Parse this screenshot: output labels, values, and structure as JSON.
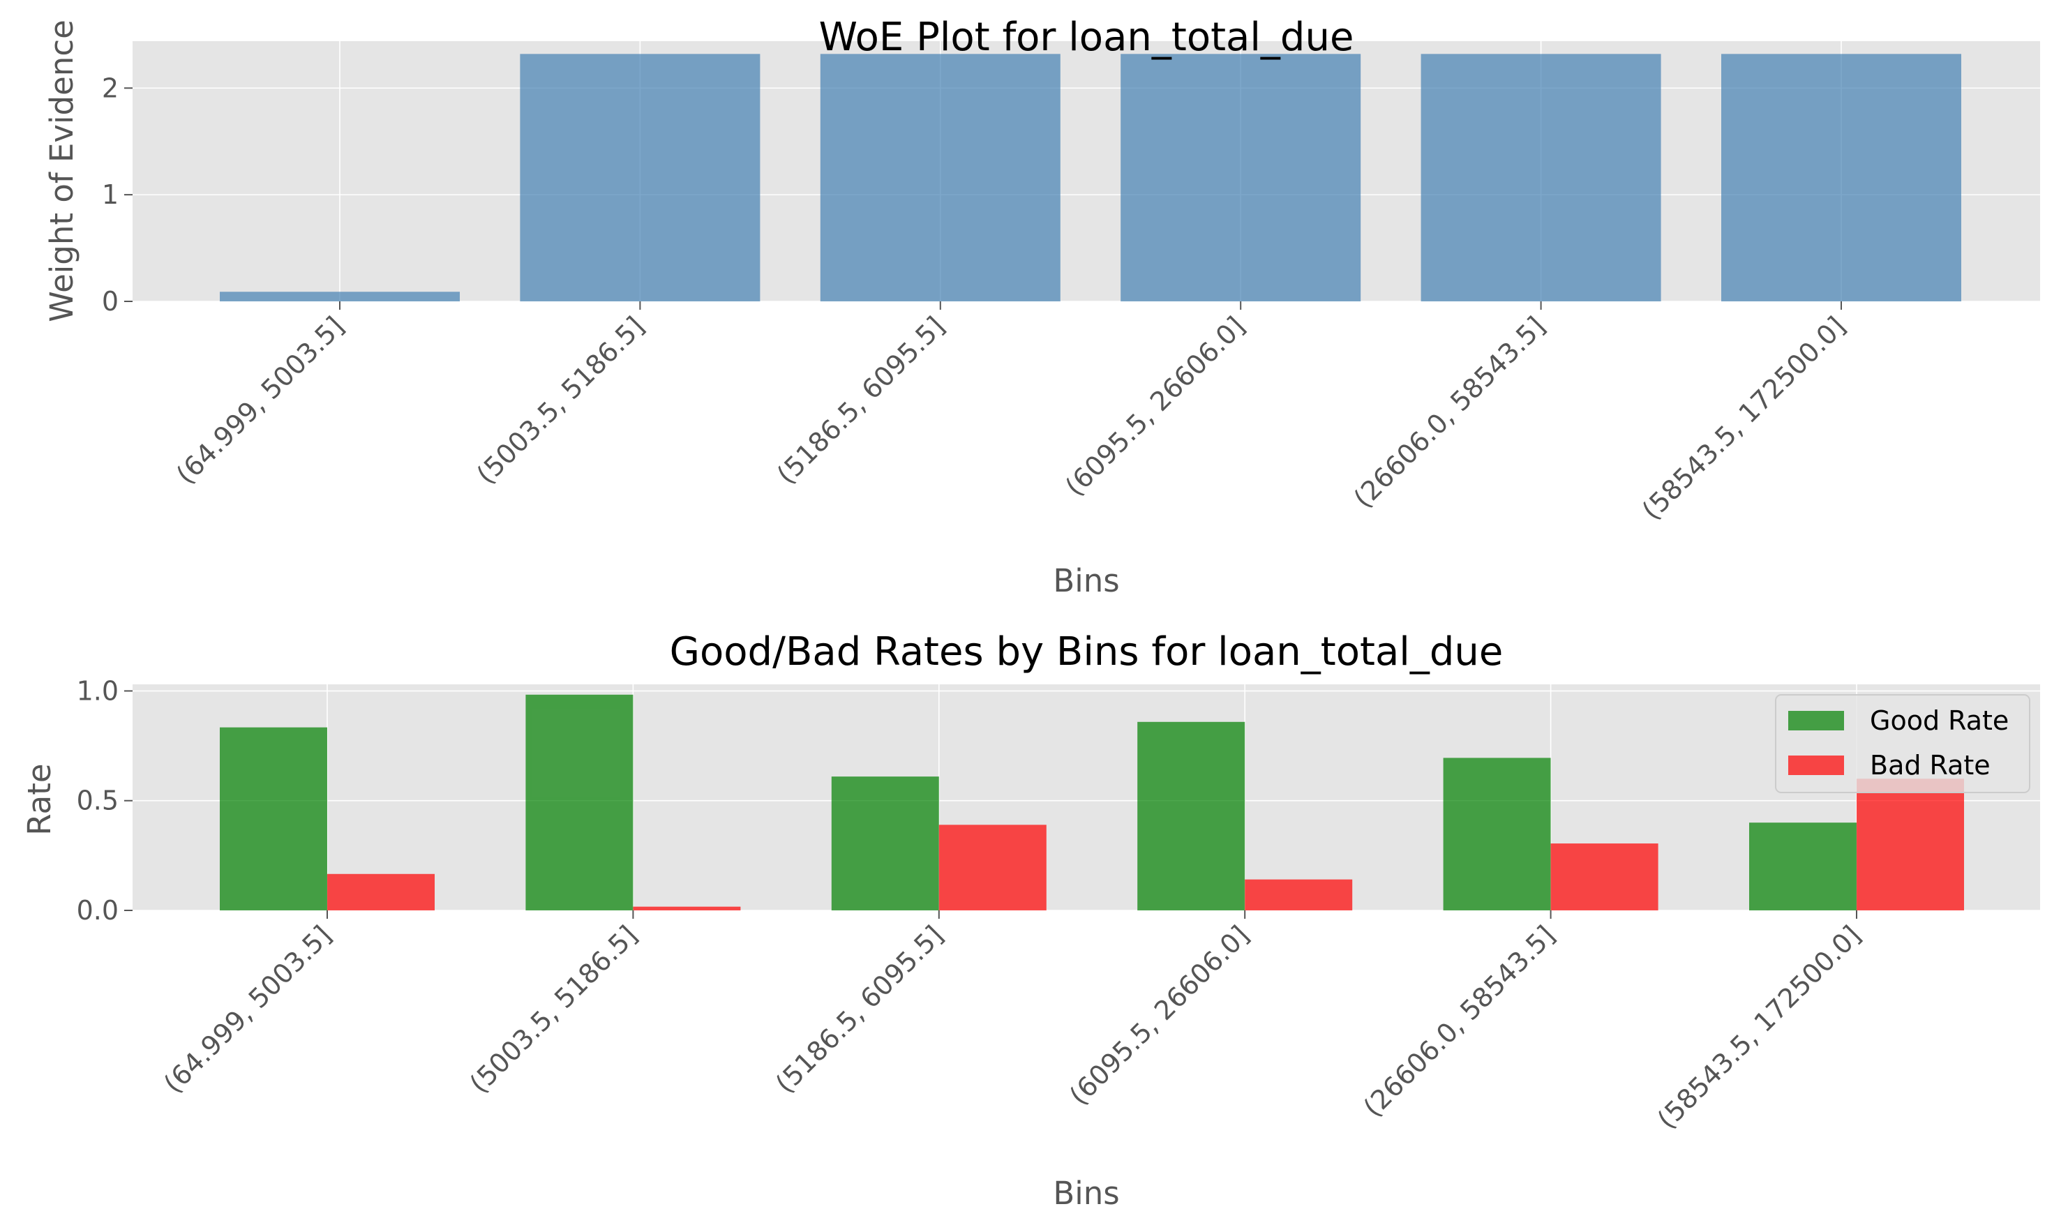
{
  "chart_data": [
    {
      "type": "bar",
      "title": "WoE Plot for loan_total_due",
      "xlabel": "Bins",
      "ylabel": "Weight of Evidence",
      "categories": [
        "(64.999, 5003.5]",
        "(5003.5, 5186.5]",
        "(5186.5, 6095.5]",
        "(6095.5, 26606.0]",
        "(26606.0, 58543.5]",
        "(58543.5, 172500.0]"
      ],
      "series": [
        {
          "values": [
            0.09,
            2.32,
            2.32,
            2.32,
            2.32,
            2.32
          ],
          "color": "#4682b4"
        }
      ],
      "ylim": [
        0,
        2.44
      ],
      "yticks": [
        0,
        1,
        2
      ],
      "grid": true
    },
    {
      "type": "bar",
      "title": "Good/Bad Rates by Bins for loan_total_due",
      "xlabel": "Bins",
      "ylabel": "Rate",
      "categories": [
        "(64.999, 5003.5]",
        "(5003.5, 5186.5]",
        "(5186.5, 6095.5]",
        "(6095.5, 26606.0]",
        "(26606.0, 58543.5]",
        "(58543.5, 172500.0]"
      ],
      "series": [
        {
          "name": "Good Rate",
          "values": [
            0.834,
            0.983,
            0.61,
            0.859,
            0.695,
            0.4
          ],
          "color": "#008000"
        },
        {
          "name": "Bad Rate",
          "values": [
            0.166,
            0.017,
            0.39,
            0.141,
            0.305,
            0.6
          ],
          "color": "#ff0000"
        }
      ],
      "ylim": [
        0,
        1.03
      ],
      "yticks": [
        "0.0",
        "0.5",
        "1.0"
      ],
      "legend": "top-right",
      "grid": true
    }
  ]
}
